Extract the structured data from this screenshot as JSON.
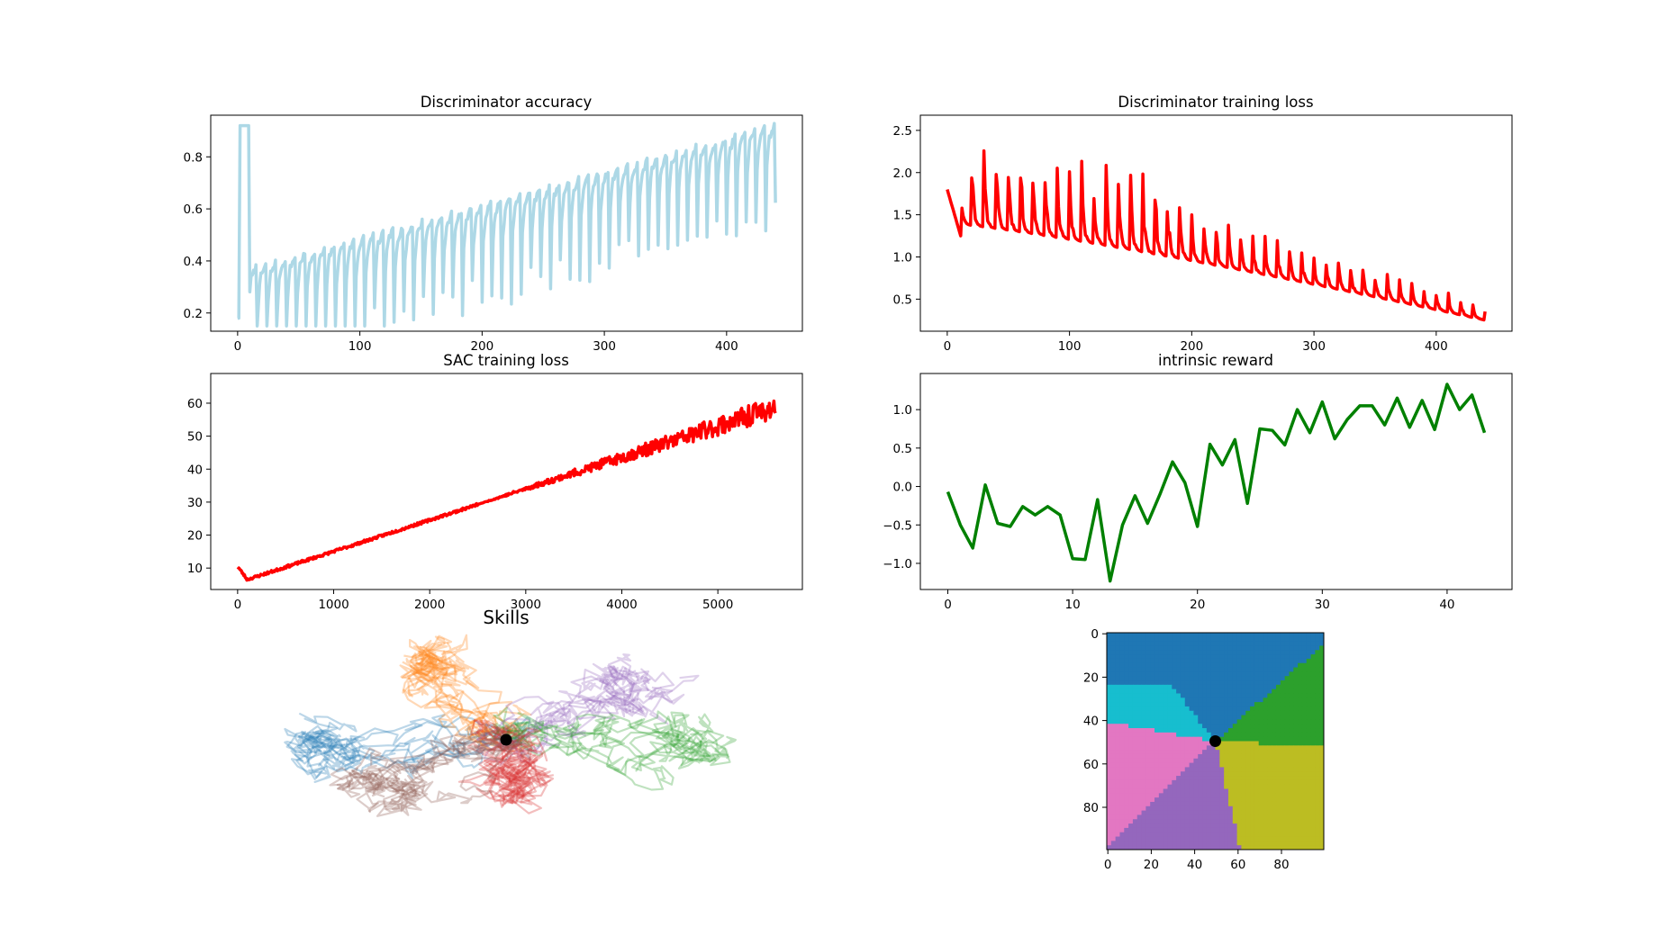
{
  "chart_data": [
    {
      "type": "line",
      "title": "Discriminator accuracy",
      "xlabel": "",
      "ylabel": "",
      "xlim": [
        -22,
        462
      ],
      "ylim": [
        0.13,
        0.96
      ],
      "xticks": [
        0,
        100,
        200,
        300,
        400
      ],
      "yticks": [
        0.2,
        0.4,
        0.6,
        0.8
      ],
      "ytick_labels": [
        "0.2",
        "0.4",
        "0.6",
        "0.8"
      ],
      "grid": false,
      "series": [
        {
          "color": "#add8e6",
          "x": [],
          "y": []
        }
      ]
    },
    {
      "type": "line",
      "title": "Discriminator training loss",
      "xlabel": "",
      "ylabel": "",
      "xlim": [
        -22,
        462
      ],
      "ylim": [
        0.12,
        2.68
      ],
      "xticks": [
        0,
        100,
        200,
        300,
        400
      ],
      "yticks": [
        0.5,
        1.0,
        1.5,
        2.0,
        2.5
      ],
      "ytick_labels": [
        "0.5",
        "1.0",
        "1.5",
        "2.0",
        "2.5"
      ],
      "grid": false,
      "series": [
        {
          "color": "#ff0000",
          "x": [],
          "y": []
        }
      ]
    },
    {
      "type": "line",
      "title": "SAC training loss",
      "xlabel": "",
      "ylabel": "",
      "xlim": [
        -280,
        5880
      ],
      "ylim": [
        3.5,
        69
      ],
      "xticks": [
        0,
        1000,
        2000,
        3000,
        4000,
        5000
      ],
      "yticks": [
        10,
        20,
        30,
        40,
        50,
        60
      ],
      "ytick_labels": [
        "10",
        "20",
        "30",
        "40",
        "50",
        "60"
      ],
      "grid": false,
      "series": [
        {
          "color": "#ff0000",
          "x": [],
          "y": []
        }
      ]
    },
    {
      "type": "line",
      "title": "intrinsic reward",
      "xlabel": "",
      "ylabel": "",
      "xlim": [
        -2.2,
        45.2
      ],
      "ylim": [
        -1.34,
        1.47
      ],
      "xticks": [
        0,
        10,
        20,
        30,
        40
      ],
      "yticks": [
        -1.0,
        -0.5,
        0.0,
        0.5,
        1.0
      ],
      "ytick_labels": [
        "−1.0",
        "−0.5",
        "0.0",
        "0.5",
        "1.0"
      ],
      "grid": false,
      "series": [
        {
          "color": "#008000",
          "x": [],
          "y": []
        }
      ]
    },
    {
      "type": "scatter",
      "title": "Skills",
      "xlabel": "",
      "ylabel": "",
      "axes": "off",
      "origin": [
        0,
        0
      ],
      "trajectories": [
        {
          "color": "#1f77b4",
          "direction": "left"
        },
        {
          "color": "#ff7f0e",
          "direction": "up"
        },
        {
          "color": "#9467bd",
          "direction": "up-right"
        },
        {
          "color": "#2ca02c",
          "direction": "right"
        },
        {
          "color": "#d62728",
          "direction": "down"
        },
        {
          "color": "#8c564b",
          "direction": "down-left"
        }
      ]
    },
    {
      "type": "heatmap",
      "title": "",
      "xlabel": "",
      "ylabel": "",
      "xlim": [
        0,
        100
      ],
      "ylim": [
        100,
        0
      ],
      "xticks": [
        0,
        20,
        40,
        60,
        80
      ],
      "yticks": [
        0,
        20,
        40,
        60,
        80
      ],
      "marker": {
        "x": 50,
        "y": 50,
        "color": "#000000"
      },
      "regions": [
        {
          "color": "#1f77b4",
          "position": "top"
        },
        {
          "color": "#17becf",
          "position": "upper-left"
        },
        {
          "color": "#2ca02c",
          "position": "right"
        },
        {
          "color": "#e377c2",
          "position": "left"
        },
        {
          "color": "#9467bd",
          "position": "bottom"
        },
        {
          "color": "#bcbd22",
          "position": "bottom-right"
        }
      ]
    }
  ]
}
